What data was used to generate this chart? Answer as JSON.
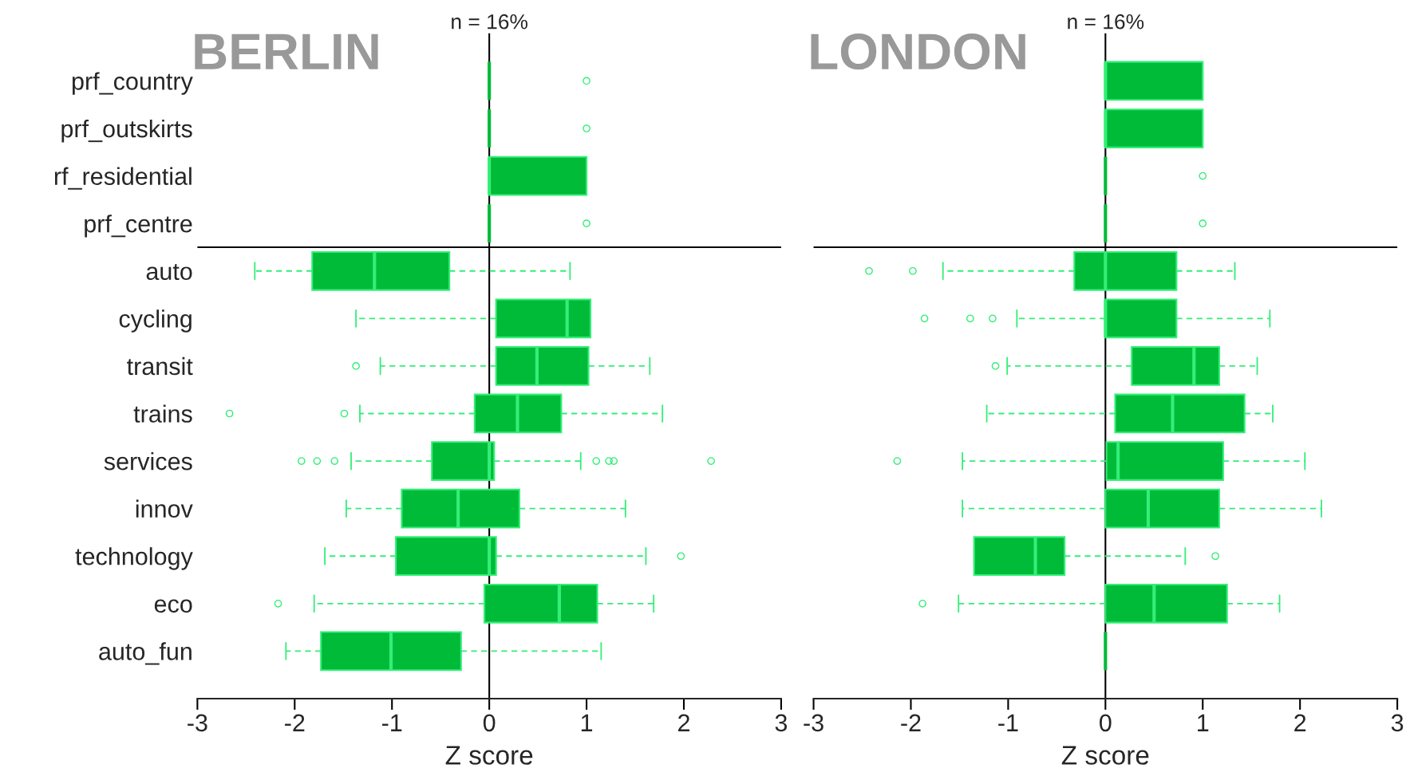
{
  "chart_data": [
    {
      "type": "box",
      "orientation": "horizontal",
      "title": "n = 16%",
      "xlabel": "Z score",
      "annotations": [
        "BERLIN"
      ],
      "categories": [
        "prf_country",
        "prf_outskirts",
        "rf_residential",
        "prf_centre",
        "auto",
        "cycling",
        "transit",
        "trains",
        "services",
        "innov",
        "technology",
        "eco",
        "auto_fun"
      ],
      "xlim": [
        -3,
        3
      ],
      "xticks": [
        -3,
        -2,
        -1,
        0,
        1,
        2,
        3
      ],
      "grid": false,
      "legend": false,
      "ref_lines": [
        {
          "axis": "x",
          "value": 0,
          "color": "#000000"
        }
      ],
      "series": [
        {
          "color": "#00bb38",
          "boxes": [
            {
              "low": 0,
              "q1": 0,
              "median": 0,
              "q3": 0,
              "high": 0,
              "outliers": [
                1.0
              ]
            },
            {
              "low": 0,
              "q1": 0,
              "median": 0,
              "q3": 0,
              "high": 0,
              "outliers": [
                1.0
              ]
            },
            {
              "low": 0,
              "q1": 0,
              "median": 0,
              "q3": 1.0,
              "high": 1.0
            },
            {
              "low": 0,
              "q1": 0,
              "median": 0,
              "q3": 0,
              "high": 0,
              "outliers": [
                1.0
              ]
            },
            {
              "low": -2.41,
              "q1": -1.82,
              "median": -1.18,
              "q3": -0.41,
              "high": 0.83
            },
            {
              "low": -1.37,
              "q1": 0.07,
              "median": 0.8,
              "q3": 1.04,
              "high": 1.04
            },
            {
              "low": -1.12,
              "q1": 0.07,
              "median": 0.49,
              "q3": 1.02,
              "high": 1.65,
              "outliers": [
                -1.37
              ]
            },
            {
              "low": -1.33,
              "q1": -0.15,
              "median": 0.29,
              "q3": 0.74,
              "high": 1.78,
              "outliers": [
                -2.67,
                -1.49
              ]
            },
            {
              "low": -1.42,
              "q1": -0.59,
              "median": 0,
              "q3": 0.05,
              "high": 0.94,
              "outliers": [
                -1.93,
                -1.77,
                -1.59,
                1.1,
                1.23,
                1.28,
                2.28
              ]
            },
            {
              "low": -1.47,
              "q1": -0.9,
              "median": -0.32,
              "q3": 0.31,
              "high": 1.4
            },
            {
              "low": -1.69,
              "q1": -0.96,
              "median": 0,
              "q3": 0.07,
              "high": 1.61,
              "outliers": [
                1.97
              ]
            },
            {
              "low": -1.8,
              "q1": -0.05,
              "median": 0.72,
              "q3": 1.11,
              "high": 1.69,
              "outliers": [
                -2.17
              ]
            },
            {
              "low": -2.09,
              "q1": -1.73,
              "median": -1.01,
              "q3": -0.29,
              "high": 1.15
            }
          ]
        }
      ]
    },
    {
      "type": "box",
      "orientation": "horizontal",
      "title": "n = 16%",
      "xlabel": "Z score",
      "annotations": [
        "LONDON"
      ],
      "tick_labels": "x",
      "categories": [
        null,
        null,
        null,
        null,
        null,
        null,
        null,
        null,
        null,
        null,
        null,
        null,
        null
      ],
      "xlim": [
        -3,
        3
      ],
      "xticks": [
        -3,
        -2,
        -1,
        0,
        1,
        2,
        3
      ],
      "grid": false,
      "legend": false,
      "ref_lines": [
        {
          "axis": "x",
          "value": 0,
          "color": "#000000"
        }
      ],
      "series": [
        {
          "color": "#00bb38",
          "boxes": [
            {
              "low": 0,
              "q1": 0,
              "median": 0,
              "q3": 1.0,
              "high": 1.0
            },
            {
              "low": 0,
              "q1": 0,
              "median": 0,
              "q3": 1.0,
              "high": 1.0
            },
            {
              "low": 0,
              "q1": 0,
              "median": 0,
              "q3": 0,
              "high": 0,
              "outliers": [
                1.0
              ]
            },
            {
              "low": 0,
              "q1": 0,
              "median": 0,
              "q3": 0,
              "high": 0,
              "outliers": [
                1.0
              ]
            },
            {
              "low": -1.67,
              "q1": -0.32,
              "median": 0,
              "q3": 0.73,
              "high": 1.33,
              "outliers": [
                -2.43,
                -1.98
              ]
            },
            {
              "low": -0.91,
              "q1": 0,
              "median": 0,
              "q3": 0.73,
              "high": 1.69,
              "outliers": [
                -1.86,
                -1.39,
                -1.16
              ]
            },
            {
              "low": -1.01,
              "q1": 0.27,
              "median": 0.91,
              "q3": 1.17,
              "high": 1.56,
              "outliers": [
                -1.13
              ]
            },
            {
              "low": -1.22,
              "q1": 0.1,
              "median": 0.69,
              "q3": 1.43,
              "high": 1.72
            },
            {
              "low": -1.47,
              "q1": 0.01,
              "median": 0.13,
              "q3": 1.21,
              "high": 2.05,
              "outliers": [
                -2.14
              ]
            },
            {
              "low": -1.47,
              "q1": 0,
              "median": 0.44,
              "q3": 1.17,
              "high": 2.22
            },
            {
              "low": -1.35,
              "q1": -1.35,
              "median": -0.72,
              "q3": -0.42,
              "high": 0.82,
              "outliers": [
                1.13
              ]
            },
            {
              "low": -1.51,
              "q1": 0,
              "median": 0.5,
              "q3": 1.25,
              "high": 1.79,
              "outliers": [
                -1.88
              ]
            },
            {
              "low": 0,
              "q1": 0,
              "median": 0,
              "q3": 0,
              "high": 0
            }
          ]
        }
      ]
    }
  ]
}
